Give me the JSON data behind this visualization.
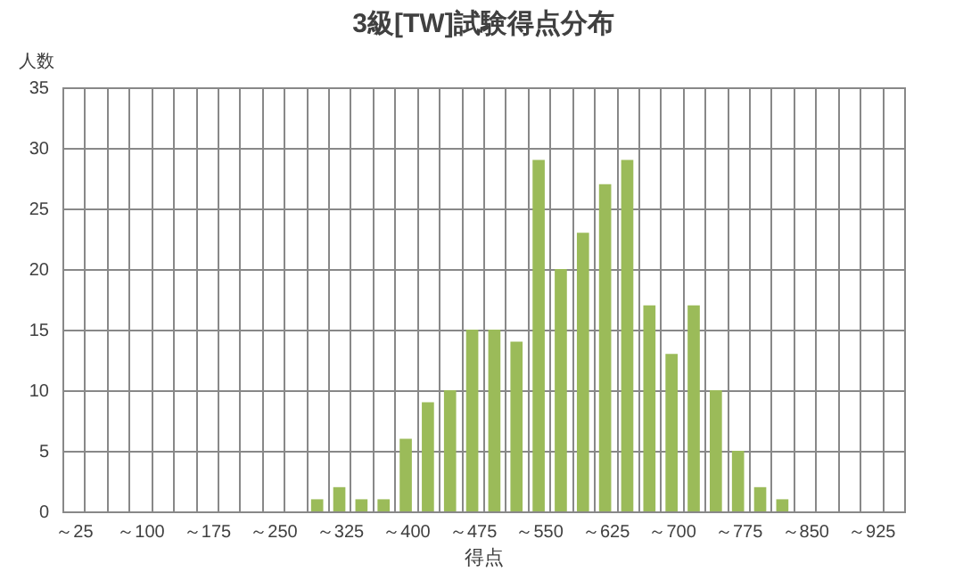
{
  "chart_data": {
    "type": "bar",
    "title": "3級[TW]試験得点分布",
    "xlabel": "得点",
    "ylabel": "人数",
    "categories": [
      "～25",
      null,
      null,
      "～100",
      null,
      null,
      "～175",
      null,
      null,
      "～250",
      null,
      null,
      "～325",
      null,
      null,
      "～400",
      null,
      null,
      "～475",
      null,
      null,
      "～550",
      null,
      null,
      "～625",
      null,
      null,
      "～700",
      null,
      null,
      "～775",
      null,
      null,
      "～850",
      null,
      null,
      "～925",
      null
    ],
    "values": [
      0,
      0,
      0,
      0,
      0,
      0,
      0,
      0,
      0,
      0,
      0,
      1,
      2,
      1,
      1,
      6,
      9,
      10,
      15,
      15,
      14,
      29,
      20,
      23,
      27,
      29,
      17,
      13,
      17,
      10,
      5,
      2,
      1,
      0,
      0,
      0,
      0,
      0
    ],
    "color": "#9bbb59",
    "ylim": [
      0,
      35
    ],
    "yticks": [
      0,
      5,
      10,
      15,
      20,
      25,
      30,
      35
    ],
    "grid": true
  }
}
